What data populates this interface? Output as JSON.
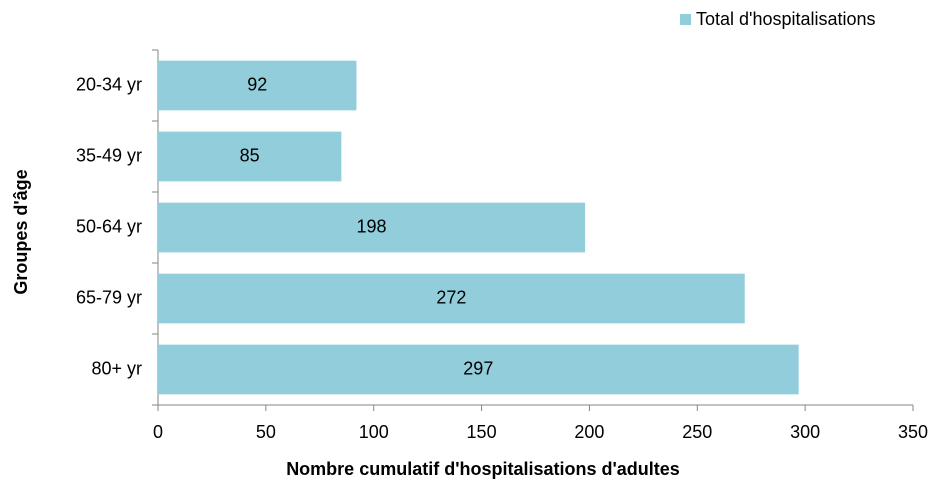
{
  "chart_data": {
    "type": "bar",
    "orientation": "horizontal",
    "x_label": "Nombre cumulatif d'hospitalisations d'adultes",
    "y_label": "Groupes d'âge",
    "categories": [
      "20-34 yr",
      "35-49 yr",
      "50-64 yr",
      "65-79 yr",
      "80+ yr"
    ],
    "series": [
      {
        "name": "Total d'hospitalisations",
        "color": "#92cddc",
        "values": [
          92,
          85,
          198,
          272,
          297
        ]
      }
    ],
    "xlim": [
      0,
      350
    ],
    "xticks": [
      0,
      50,
      100,
      150,
      200,
      250,
      300,
      350
    ],
    "legend": "top-right",
    "grid": false
  }
}
